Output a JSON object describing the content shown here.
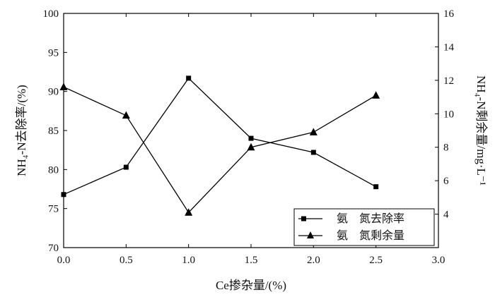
{
  "chart_data": {
    "type": "line",
    "xlabel": "Ce掺杂量/(%)",
    "ylabel_left": "NH₄-N去除率/(%)",
    "ylabel_right": "NH₄-N剩余量/mg·L⁻¹",
    "xlim": [
      0.0,
      3.0
    ],
    "ylim_left": [
      70,
      100
    ],
    "ylim_right": [
      2,
      16
    ],
    "x_ticks": [
      "0.0",
      "0.5",
      "1.0",
      "1.5",
      "2.0",
      "2.5",
      "3.0"
    ],
    "y_left_ticks": [
      "70",
      "75",
      "80",
      "85",
      "90",
      "95",
      "100"
    ],
    "y_right_ticks": [
      "4",
      "6",
      "8",
      "10",
      "12",
      "14",
      "16"
    ],
    "legend_position": "bottom-right",
    "series": [
      {
        "name": "氨　氮去除率",
        "axis": "left",
        "marker": "square",
        "x": [
          0.0,
          0.5,
          1.0,
          1.5,
          2.0,
          2.5
        ],
        "y": [
          76.8,
          80.3,
          91.7,
          84.0,
          82.2,
          77.8
        ]
      },
      {
        "name": "氨　氮剩余量",
        "axis": "right",
        "marker": "triangle",
        "x": [
          0.0,
          0.5,
          1.0,
          1.5,
          2.0,
          2.5
        ],
        "y": [
          11.6,
          9.9,
          4.1,
          8.0,
          8.9,
          11.1
        ]
      }
    ]
  }
}
